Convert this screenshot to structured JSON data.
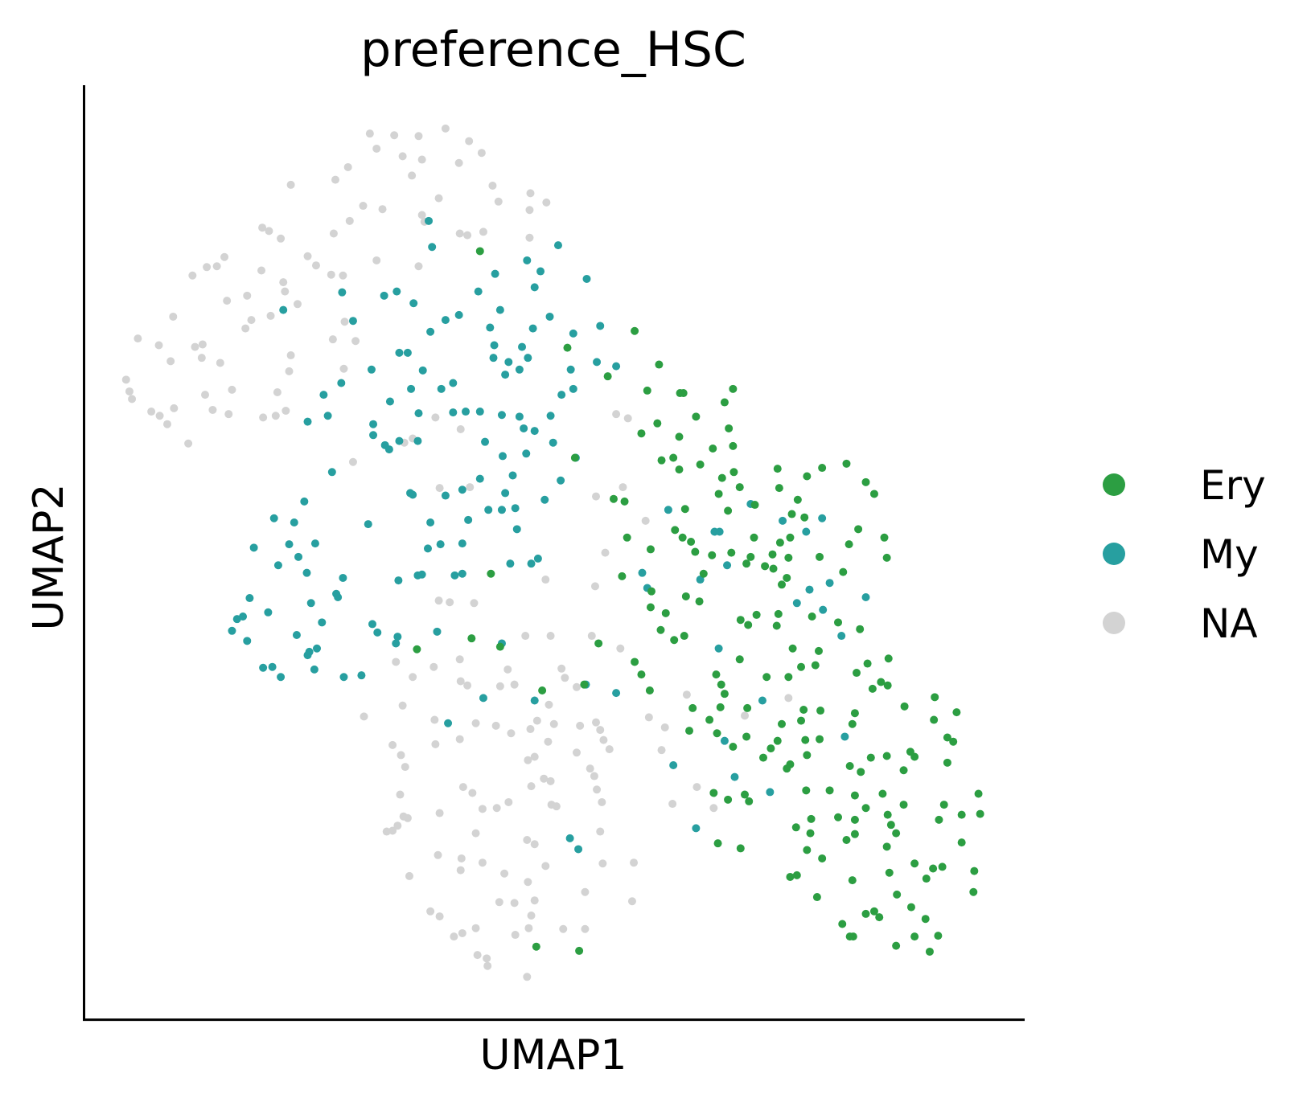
{
  "chart_data": {
    "type": "scatter",
    "title": "preference_HSC",
    "xlabel": "UMAP1",
    "ylabel": "UMAP2",
    "xlim": [
      100,
      1218
    ],
    "ylim": [
      1214,
      102
    ],
    "series": [
      {
        "name": "NA",
        "color": "#d3d3d3",
        "x": [
          440,
          469,
          498,
          530,
          558,
          448,
          479,
          502,
          546,
          573,
          414,
          490,
          346,
          399,
          586,
          631,
          522,
          593,
          650,
          432,
          455,
          630,
          502,
          505,
          416,
          312,
          320,
          334,
          397,
          547,
          556,
          575,
          630,
          267,
          258,
          246,
          229,
          311,
          366,
          376,
          448,
          498,
          394,
          408,
          337,
          354,
          294,
          270,
          339,
          322,
          299,
          292,
          410,
          206,
          164,
          189,
          232,
          241,
          240,
          203,
          262,
          346,
          423,
          396,
          409,
          150,
          154,
          157,
          244,
          276,
          330,
          344,
          180,
          190,
          207,
          199,
          253,
          272,
          313,
          328,
          340,
          224,
          420,
          481,
          491,
          518,
          548,
          733,
          747,
          523,
          559,
          741,
          709,
          768,
          720,
          649,
          708,
          522,
          535,
          564,
          520,
          625,
          655,
          704,
          738,
          471,
          516,
          547,
          491,
          548,
          556,
          595,
          604,
          612,
          668,
          672,
          686,
          653,
          631,
          639,
          479,
          433,
          517,
          566,
          590,
          608,
          659,
          690,
          709,
          714,
          772,
          817,
          791,
          518,
          547,
          467,
          477,
          482,
          652,
          686,
          628,
          636,
          718,
          725,
          787,
          702,
          707,
          647,
          655,
          632,
          710,
          551,
          562,
          476,
          523,
          574,
          591,
          605,
          656,
          662,
          716,
          480,
          485,
          473,
          460,
          467,
          566,
          627,
          636,
          714,
          521,
          549,
          574,
          649,
          717,
          754,
          487,
          548,
          600,
          628,
          636,
          696,
          594,
          612,
          752,
          512,
          523,
          632,
          566,
          540,
          550,
          613,
          629,
          670,
          696,
          568,
          579,
          580,
          627,
          800,
          849,
          938,
          886,
          829
        ],
        "values": [
          159,
          161,
          162,
          153,
          168,
          177,
          186,
          190,
          194,
          182,
          199,
          209,
          220,
          214,
          221,
          230,
          236,
          240,
          241,
          245,
          249,
          250,
          256,
          264,
          263,
          271,
          275,
          284,
          278,
          278,
          280,
          276,
          283,
          306,
          317,
          318,
          328,
          322,
          305,
          316,
          310,
          317,
          327,
          328,
          336,
          362,
          352,
          358,
          347,
          376,
          381,
          391,
          383,
          377,
          403,
          411,
          413,
          410,
          426,
          430,
          432,
          423,
          406,
          404,
          439,
          452,
          466,
          475,
          470,
          464,
          467,
          442,
          490,
          495,
          486,
          505,
          488,
          493,
          497,
          495,
          489,
          528,
          550,
          527,
          522,
          497,
          511,
          493,
          498,
          581,
          580,
          580,
          591,
          620,
          658,
          690,
          698,
          715,
          717,
          718,
          752,
          757,
          757,
          757,
          772,
          788,
          794,
          785,
          806,
          811,
          816,
          817,
          797,
          815,
          796,
          807,
          818,
          839,
          868,
          858,
          840,
          853,
          857,
          861,
          864,
          873,
          862,
          864,
          860,
          869,
          854,
          827,
          866,
          886,
          880,
          887,
          899,
          913,
          883,
          896,
          905,
          901,
          881,
          892,
          893,
          915,
          924,
          927,
          930,
          936,
          940,
          937,
          944,
          946,
          968,
          963,
          962,
          955,
          958,
          960,
          955,
          972,
          974,
          983,
          990,
          989,
          992,
          1000,
          1005,
          990,
          1018,
          1022,
          1027,
          1031,
          1028,
          1027,
          1043,
          1036,
          1040,
          1050,
          1072,
          1062,
          1074,
          1075,
          1073,
          1085,
          1091,
          1090,
          1105,
          1115,
          1111,
          1113,
          1105,
          1106,
          1106,
          1137,
          1141,
          1150,
          1163,
          957,
          962,
          831,
          852,
          937
        ]
      },
      {
        "name": "My",
        "color": "#279fa0",
        "x": [
          510,
          514,
          664,
          627,
          589,
          643,
          698,
          407,
          457,
          472,
          492,
          569,
          636,
          337,
          420,
          530,
          546,
          595,
          583,
          654,
          512,
          634,
          682,
          714,
          588,
          621,
          475,
          485,
          503,
          587,
          605,
          601,
          618,
          628,
          710,
          733,
          442,
          406,
          489,
          525,
          539,
          679,
          682,
          668,
          385,
          464,
          498,
          539,
          554,
          571,
          597,
          618,
          655,
          366,
          390,
          444,
          444,
          458,
          463,
          475,
          497,
          577,
          623,
          636,
          658,
          598,
          626,
          685,
          395,
          571,
          610,
          667,
          488,
          491,
          530,
          550,
          601,
          648,
          362,
          438,
          326,
          350,
          302,
          344,
          375,
          355,
          331,
          365,
          512,
          557,
          581,
          597,
          613,
          615,
          509,
          524,
          550,
          607,
          640,
          632,
          497,
          502,
          474,
          541,
          550,
          408,
          400,
          402,
          297,
          282,
          289,
          319,
          276,
          294,
          370,
          383,
          353,
          368,
          377,
          366,
          443,
          449,
          473,
          471,
          520,
          597,
          374,
          313,
          324,
          334,
          409,
          430,
          575,
          636,
          697,
          733,
          533,
          678,
          688,
          795,
          850,
          856,
          833,
          893,
          865,
          931,
          959,
          978,
          948,
          963,
          987,
          979,
          1001,
          1030,
          1005,
          855,
          862,
          874,
          907,
          801,
          916,
          828,
          764,
          770
        ],
        "values": [
          263,
          294,
          292,
          310,
          326,
          323,
          332,
          348,
          352,
          347,
          361,
          347,
          342,
          369,
          382,
          381,
          375,
          369,
          390,
          377,
          395,
          391,
          397,
          388,
          411,
          413,
          420,
          420,
          441,
          426,
          431,
          446,
          440,
          426,
          431,
          436,
          440,
          456,
          463,
          463,
          456,
          440,
          463,
          470,
          470,
          478,
          492,
          491,
          490,
          490,
          494,
          496,
          495,
          502,
          495,
          505,
          518,
          530,
          535,
          525,
          525,
          526,
          510,
          513,
          527,
          543,
          540,
          545,
          562,
          570,
          566,
          572,
          587,
          589,
          590,
          583,
          587,
          595,
          597,
          624,
          617,
          622,
          652,
          648,
          647,
          663,
          673,
          682,
          622,
          619,
          607,
          607,
          605,
          630,
          653,
          648,
          647,
          671,
          665,
          671,
          685,
          684,
          691,
          685,
          683,
          688,
          707,
          711,
          712,
          737,
          734,
          729,
          751,
          763,
          718,
          741,
          756,
          776,
          772,
          780,
          743,
          753,
          758,
          766,
          752,
          766,
          797,
          795,
          794,
          806,
          806,
          804,
          831,
          834,
          815,
          825,
          861,
          998,
          1011,
          607,
          633,
          633,
          690,
          600,
          673,
          620,
          633,
          617,
          718,
          702,
          694,
          726,
          757,
          711,
          877,
          772,
          882,
          925,
          834,
          911,
          943,
          986,
          682,
          700
        ]
      },
      {
        "name": "Ery",
        "color": "#2c9e42",
        "x": [
          571,
          755,
          675,
          723,
          784,
          770,
          809,
          813,
          872,
          862,
          828,
          867,
          782,
          763,
          808,
          848,
          872,
          684,
          787,
          801,
          833,
          873,
          859,
          808,
          880,
          925,
          960,
          978,
          1007,
          1030,
          1040,
          927,
          949,
          855,
          866,
          898,
          743,
          730,
          815,
          942,
          957,
          1021,
          1052,
          803,
          812,
          822,
          827,
          847,
          870,
          893,
          919,
          897,
          928,
          940,
          938,
          975,
          1010,
          1055,
          774,
          746,
          740,
          837,
          888,
          910,
          930,
          936,
          920,
          1003,
          584,
          775,
          774,
          792,
          816,
          832,
          881,
          890,
          926,
          900,
          924,
          966,
          997,
          1023,
          786,
          802,
          814,
          880,
          943,
          974,
          1032,
          1057,
          712,
          755,
          763,
          852,
          858,
          912,
          938,
          953,
          970,
          1019,
          1048,
          1056,
          1038,
          773,
          824,
          862,
          857,
          889,
          956,
          953,
          930,
          976,
          1017,
          1076,
          1112,
          1138,
          1111,
          820,
          844,
          853,
          872,
          888,
          908,
          917,
          925,
          940,
          936,
          958,
          960,
          975,
          1011,
          1024,
          1036,
          1055,
          1014,
          1083,
          1075,
          1088,
          1127,
          1134,
          1127,
          849,
          866,
          886,
          891,
          959,
          987,
          1017,
          1050,
          1075,
          1123,
          1144,
          1164,
          1166,
          1117,
          947,
          965,
          964,
          997,
          1017,
          1030,
          1056,
          1060,
          1066,
          1017,
          1007,
          854,
          881,
          960,
          978,
          1055,
          1088,
          1110,
          1121,
          1144,
          1159,
          1058,
          1014,
          940,
          948,
          1102,
          1067,
          1158,
          972,
          1030,
          1040,
          1046,
          1002,
          1084,
          1101,
          1011,
          1015,
          1088,
          1066,
          1116,
          1106,
          638,
          689,
          561,
          496,
          645,
          595,
          695
        ],
        "values": [
          299,
          394,
          414,
          448,
          434,
          465,
          468,
          468,
          463,
          479,
          496,
          510,
          504,
          516,
          520,
          534,
          531,
          545,
          548,
          545,
          553,
          562,
          569,
          559,
          580,
          558,
          567,
          557,
          552,
          574,
          588,
          581,
          595,
          588,
          608,
          601,
          597,
          594,
          606,
          612,
          616,
          630,
          640,
          631,
          640,
          645,
          657,
          661,
          658,
          663,
          660,
          640,
          646,
          640,
          664,
          663,
          648,
          664,
          654,
          640,
          686,
          683,
          671,
          674,
          696,
          688,
          677,
          681,
          683,
          704,
          723,
          730,
          710,
          716,
          738,
          744,
          731,
          732,
          745,
          734,
          741,
          749,
          750,
          762,
          757,
          785,
          772,
          775,
          790,
          784,
          766,
          788,
          803,
          803,
          815,
          806,
          806,
          794,
          792,
          801,
          812,
          816,
          820,
          822,
          843,
          826,
          842,
          843,
          845,
          858,
          862,
          846,
          849,
          841,
          830,
          848,
          857,
          870,
          857,
          873,
          889,
          877,
          902,
          891,
          882,
          910,
          915,
          881,
          899,
          880,
          912,
          919,
          902,
          900,
          862,
          895,
          917,
          901,
          878,
          883,
          908,
          944,
          952,
          946,
          954,
          941,
          941,
          947,
          945,
          958,
          958,
          970,
          945,
          969,
          976,
          985,
          975,
          992,
          973,
          976,
          962,
          970,
          982,
          992,
          993,
          1000,
          1004,
          1010,
          1012,
          1022,
          1008,
          1028,
          1034,
          1032,
          1003,
          1037,
          1039,
          1048,
          1044,
          1042,
          1046,
          1065,
          1062,
          1068,
          1088,
          1085,
          1092,
          1100,
          1080,
          1094,
          1115,
          1115,
          1115,
          1126,
          1114,
          1133,
          1127,
          1132,
          760,
          773,
          822,
          770,
          815
        ]
      }
    ],
    "legend_order": [
      "Ery",
      "My",
      "NA"
    ]
  }
}
